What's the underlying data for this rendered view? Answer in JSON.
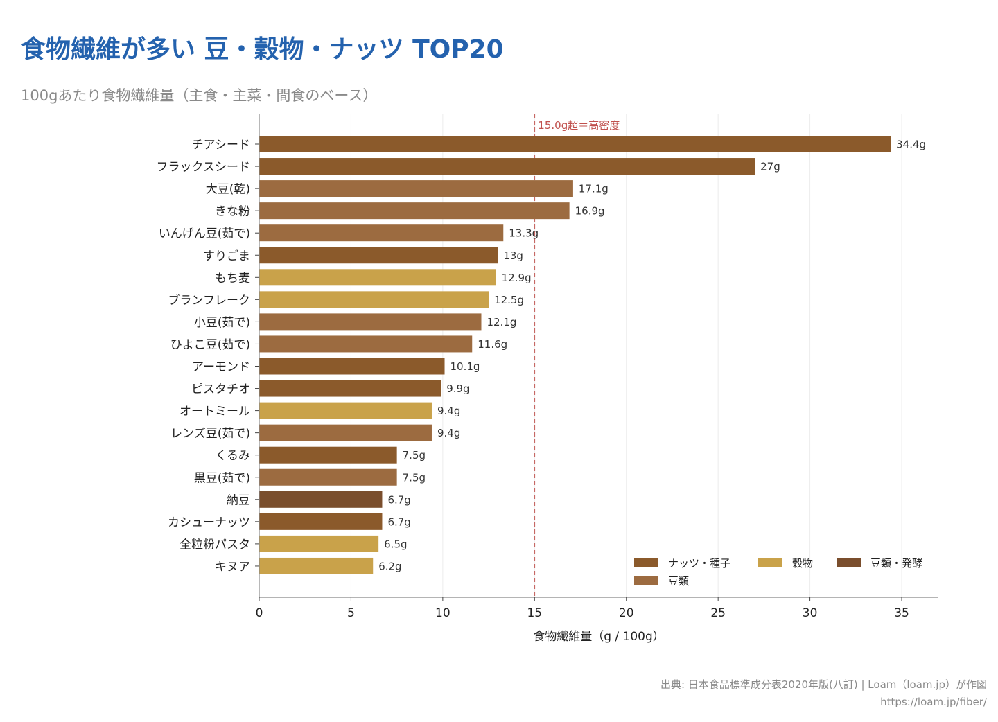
{
  "header": {
    "title": "食物繊維が多い 豆・穀物・ナッツ TOP20",
    "subtitle": "100gあたり食物繊維量（主食・主菜・間食のベース）"
  },
  "footer": {
    "source": "出典: 日本食品標準成分表2020年版(八訂) | Loam（loam.jp）が作図",
    "url": "https://loam.jp/fiber/"
  },
  "chart_data": {
    "type": "bar",
    "orientation": "horizontal",
    "xlabel": "食物繊維量（g / 100g）",
    "xlim": [
      0,
      37
    ],
    "xticks": [
      0,
      5,
      10,
      15,
      20,
      25,
      30,
      35
    ],
    "grid": "vertical",
    "legend_placement": "bottom-right",
    "value_suffix": "g",
    "reference_line": {
      "value": 15,
      "label": "15.0g超＝高密度",
      "color": "#c0504d"
    },
    "groups": [
      {
        "name": "ナッツ・種子",
        "color": "#8b5a2b"
      },
      {
        "name": "穀物",
        "color": "#c9a24a"
      },
      {
        "name": "豆類・発酵",
        "color": "#7a4e2d"
      },
      {
        "name": "豆類",
        "color": "#9c6b40"
      }
    ],
    "categories": [
      "チアシード",
      "フラックスシード",
      "大豆(乾)",
      "きな粉",
      "いんげん豆(茹で)",
      "すりごま",
      "もち麦",
      "ブランフレーク",
      "小豆(茹で)",
      "ひよこ豆(茹で)",
      "アーモンド",
      "ピスタチオ",
      "オートミール",
      "レンズ豆(茹で)",
      "くるみ",
      "黒豆(茹で)",
      "納豆",
      "カシューナッツ",
      "全粒粉パスタ",
      "キヌア"
    ],
    "values": [
      34.4,
      27,
      17.1,
      16.9,
      13.3,
      13,
      12.9,
      12.5,
      12.1,
      11.6,
      10.1,
      9.9,
      9.4,
      9.4,
      7.5,
      7.5,
      6.7,
      6.7,
      6.5,
      6.2
    ],
    "value_labels": [
      "34.4g",
      "27g",
      "17.1g",
      "16.9g",
      "13.3g",
      "13g",
      "12.9g",
      "12.5g",
      "12.1g",
      "11.6g",
      "10.1g",
      "9.9g",
      "9.4g",
      "9.4g",
      "7.5g",
      "7.5g",
      "6.7g",
      "6.7g",
      "6.5g",
      "6.2g"
    ],
    "item_groups": [
      "ナッツ・種子",
      "ナッツ・種子",
      "豆類",
      "豆類",
      "豆類",
      "ナッツ・種子",
      "穀物",
      "穀物",
      "豆類",
      "豆類",
      "ナッツ・種子",
      "ナッツ・種子",
      "穀物",
      "豆類",
      "ナッツ・種子",
      "豆類",
      "豆類・発酵",
      "ナッツ・種子",
      "穀物",
      "穀物"
    ]
  }
}
